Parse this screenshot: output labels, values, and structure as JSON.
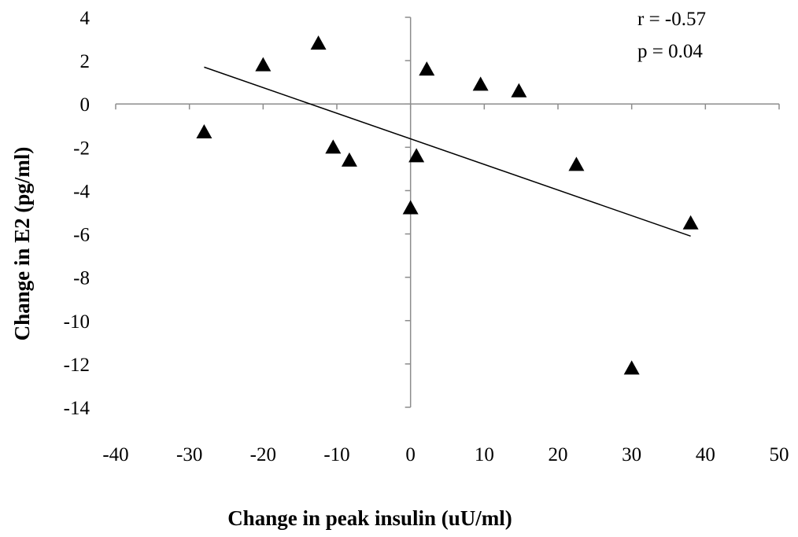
{
  "chart_data": {
    "type": "scatter",
    "xlabel": "Change in peak insulin (uU/ml)",
    "ylabel": "Change in E2 (pg/ml)",
    "xlim": [
      -40,
      50
    ],
    "ylim": [
      -14,
      4
    ],
    "x_ticks": [
      -40,
      -30,
      -20,
      -10,
      0,
      10,
      20,
      30,
      40,
      50
    ],
    "y_ticks": [
      4,
      2,
      0,
      -2,
      -4,
      -6,
      -8,
      -10,
      -12,
      -14
    ],
    "x_tick_labels": [
      "-40",
      "-30",
      "-20",
      "-10",
      "0",
      "10",
      "20",
      "30",
      "40",
      "50"
    ],
    "y_tick_labels": [
      "4",
      "2",
      "0",
      "-2",
      "-4",
      "-6",
      "-8",
      "-10",
      "-12",
      "-14"
    ],
    "marker": "triangle",
    "marker_color": "#000000",
    "points": [
      {
        "x": -28,
        "y": -1.3
      },
      {
        "x": -20,
        "y": 1.8
      },
      {
        "x": -12.5,
        "y": 2.8
      },
      {
        "x": -10.5,
        "y": -2.0
      },
      {
        "x": -8.3,
        "y": -2.6
      },
      {
        "x": 0,
        "y": -4.8
      },
      {
        "x": 0.8,
        "y": -2.4
      },
      {
        "x": 2.2,
        "y": 1.6
      },
      {
        "x": 9.5,
        "y": 0.9
      },
      {
        "x": 14.7,
        "y": 0.6
      },
      {
        "x": 22.5,
        "y": -2.8
      },
      {
        "x": 30,
        "y": -12.2
      },
      {
        "x": 38,
        "y": -5.5
      }
    ],
    "trendline": {
      "x1": -28,
      "y1": 1.7,
      "x2": 38,
      "y2": -6.1
    },
    "annotations": {
      "r": "r = -0.57",
      "p": "p = 0.04"
    },
    "grid": false,
    "legend": "none"
  }
}
